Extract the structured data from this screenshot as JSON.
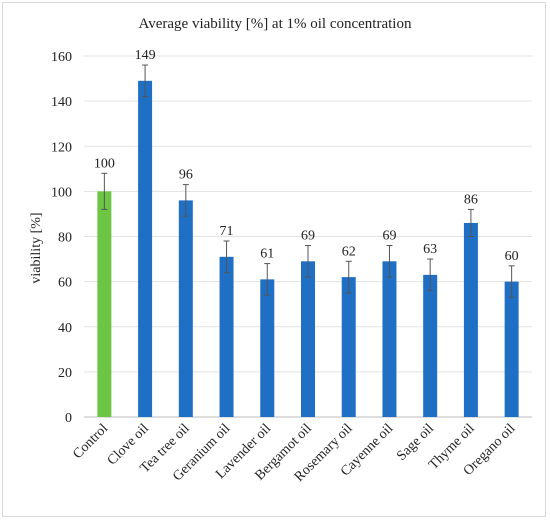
{
  "chart_data": {
    "type": "bar",
    "title": "Average viability [%] at 1% oil concentration",
    "ylabel": "viability [%]",
    "xlabel": "",
    "ylim": [
      0,
      160
    ],
    "yticks": [
      0,
      20,
      40,
      60,
      80,
      100,
      120,
      140,
      160
    ],
    "grid": true,
    "legend": "none",
    "categories": [
      "Control",
      "Clove oil",
      "Tea tree oil",
      "Geranium oil",
      "Lavender oil",
      "Bergamot oil",
      "Rosemary oil",
      "Cayenne oil",
      "Sage oil",
      "Thyme oil",
      "Oregano oil"
    ],
    "values": [
      100,
      149,
      96,
      71,
      61,
      69,
      62,
      69,
      63,
      86,
      60
    ],
    "error": [
      8,
      7,
      7,
      7,
      7,
      7,
      7,
      7,
      7,
      6,
      7
    ],
    "colors": [
      "#6cc644",
      "#1f6fc5",
      "#1f6fc5",
      "#1f6fc5",
      "#1f6fc5",
      "#1f6fc5",
      "#1f6fc5",
      "#1f6fc5",
      "#1f6fc5",
      "#1f6fc5",
      "#1f6fc5"
    ]
  }
}
